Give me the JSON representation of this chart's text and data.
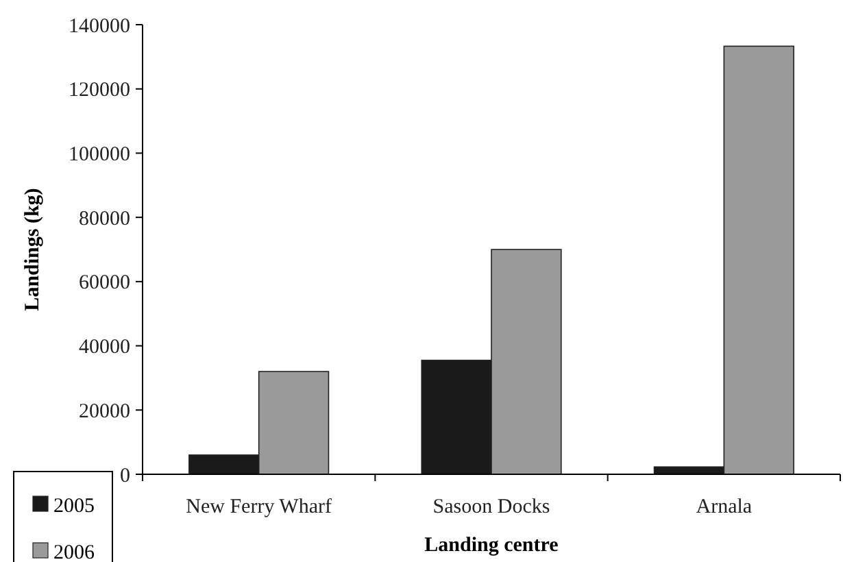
{
  "chart_data": {
    "type": "bar",
    "xlabel": "Landing centre",
    "ylabel": "Landings (kg)",
    "categories": [
      "New Ferry Wharf",
      "Sasoon Docks",
      "Arnala"
    ],
    "series": [
      {
        "name": "2005",
        "color": "#1a1a1a",
        "values": [
          6000,
          35500,
          2300
        ]
      },
      {
        "name": "2006",
        "color": "#9a9a9a",
        "values": [
          32000,
          70000,
          133300
        ]
      }
    ],
    "ylim": [
      0,
      140000
    ],
    "yticks": [
      0,
      20000,
      40000,
      60000,
      80000,
      100000,
      120000,
      140000
    ],
    "grid": false,
    "legend": "bottom left"
  }
}
